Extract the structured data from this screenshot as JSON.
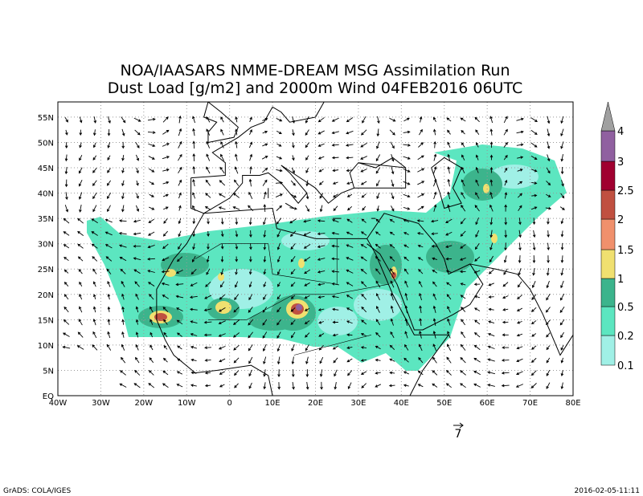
{
  "title": [
    "NOA/IAASARS NMME-DREAM MSG Assimilation Run",
    "Dust Load [g/m2] and 2000m Wind 04FEB2016 06UTC"
  ],
  "map": {
    "lon_labels": [
      "40W",
      "30W",
      "20W",
      "10W",
      "0",
      "10E",
      "20E",
      "30E",
      "40E",
      "50E",
      "60E",
      "70E",
      "80E"
    ],
    "lat_labels": [
      "EQ",
      "5N",
      "10N",
      "15N",
      "20N",
      "25N",
      "30N",
      "35N",
      "40N",
      "45N",
      "50N",
      "55N"
    ]
  },
  "colorbar": {
    "labels": [
      "0.1",
      "0.2",
      "0.5",
      "1",
      "1.5",
      "2",
      "2.5",
      "3",
      "4"
    ],
    "colors": [
      "#a0f0e6",
      "#5ce6c0",
      "#3cb48c",
      "#f0e070",
      "#f0906c",
      "#c05040",
      "#a00030",
      "#9060a0",
      "#a0a0a0"
    ]
  },
  "wind_reference": "7",
  "footer": {
    "left": "GrADS: COLA/IGES",
    "right": "2016-02-05-11:11"
  }
}
